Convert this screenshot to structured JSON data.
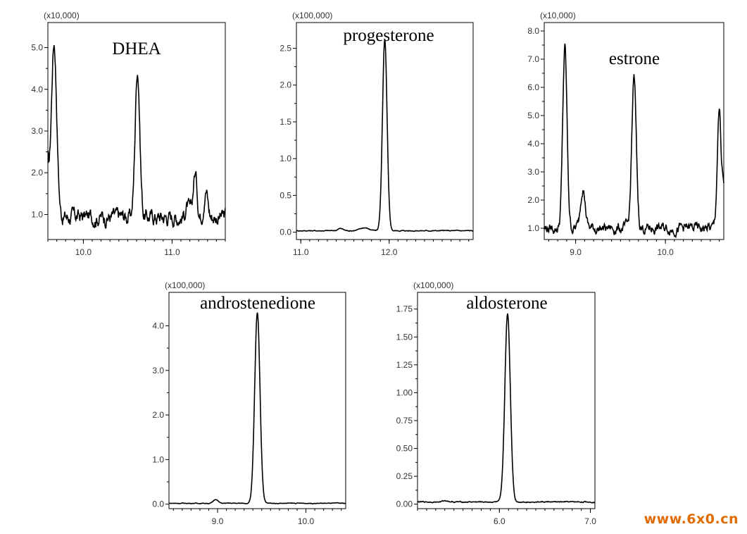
{
  "watermark": "www.6x0.cn",
  "colors": {
    "line": "#000000",
    "axis": "#000000",
    "text": "#333333",
    "watermark": "#e06b00"
  },
  "chart_data": [
    {
      "type": "line",
      "title": "DHEA",
      "scale_label": "(x10,000)",
      "xlim": [
        9.6,
        11.6
      ],
      "ylim": [
        0.4,
        5.6
      ],
      "x_ticks": [
        10.0,
        11.0
      ],
      "x_tick_labels": [
        "10.0",
        "11.0"
      ],
      "y_ticks": [
        1,
        2,
        3,
        4,
        5
      ],
      "y_tick_labels": [
        "1.0",
        "2.0",
        "3.0",
        "4.0",
        "5.0"
      ],
      "peaks": [
        {
          "rt": 9.67,
          "height": 4.15,
          "width": 0.03
        },
        {
          "rt": 10.61,
          "height": 3.55,
          "width": 0.026
        },
        {
          "rt": 11.26,
          "height": 1.05,
          "width": 0.022
        },
        {
          "rt": 11.38,
          "height": 0.7,
          "width": 0.022
        },
        {
          "rt": 11.17,
          "height": 0.25,
          "width": 0.02
        }
      ],
      "baseline": 0.95,
      "noise": 0.12,
      "left_edge": {
        "value": 2.0,
        "decay": 0.02
      }
    },
    {
      "type": "line",
      "title": "progesterone",
      "scale_label": "(x100,000)",
      "xlim": [
        10.95,
        12.95
      ],
      "ylim": [
        -0.1,
        2.85
      ],
      "x_ticks": [
        11.0,
        12.0
      ],
      "x_tick_labels": [
        "11.0",
        "12.0"
      ],
      "y_ticks": [
        0,
        0.5,
        1,
        1.5,
        2,
        2.5
      ],
      "y_tick_labels": [
        "0.0",
        "0.5",
        "1.0",
        "1.5",
        "2.0",
        "2.5"
      ],
      "peaks": [
        {
          "rt": 11.95,
          "height": 2.6,
          "width": 0.026
        },
        {
          "rt": 11.45,
          "height": 0.03,
          "width": 0.03
        },
        {
          "rt": 11.72,
          "height": 0.04,
          "width": 0.05
        }
      ],
      "baseline": 0.02,
      "noise": 0.004
    },
    {
      "type": "line",
      "title": "estrone",
      "scale_label": "(x10,000)",
      "xlim": [
        8.65,
        10.65
      ],
      "ylim": [
        0.6,
        8.3
      ],
      "x_ticks": [
        9.0,
        10.0
      ],
      "x_tick_labels": [
        "9.0",
        "10.0"
      ],
      "y_ticks": [
        1,
        2,
        3,
        4,
        5,
        6,
        7,
        8
      ],
      "y_tick_labels": [
        "1.0",
        "2.0",
        "3.0",
        "4.0",
        "5.0",
        "6.0",
        "7.0",
        "8.0"
      ],
      "peaks": [
        {
          "rt": 8.88,
          "height": 6.4,
          "width": 0.024
        },
        {
          "rt": 9.08,
          "height": 1.5,
          "width": 0.026
        },
        {
          "rt": 9.65,
          "height": 5.3,
          "width": 0.025
        },
        {
          "rt": 10.6,
          "height": 4.1,
          "width": 0.022
        }
      ],
      "baseline": 1.0,
      "noise": 0.12,
      "right_edge": {
        "value": 2.6
      }
    },
    {
      "type": "line",
      "title": "androstenedione",
      "scale_label": "(x100,000)",
      "xlim": [
        8.45,
        10.45
      ],
      "ylim": [
        -0.1,
        4.75
      ],
      "x_ticks": [
        9.0,
        10.0
      ],
      "x_tick_labels": [
        "9.0",
        "10.0"
      ],
      "y_ticks": [
        0,
        1,
        2,
        3,
        4
      ],
      "y_tick_labels": [
        "0.0",
        "1.0",
        "2.0",
        "3.0",
        "4.0"
      ],
      "peaks": [
        {
          "rt": 9.45,
          "height": 4.27,
          "width": 0.03
        },
        {
          "rt": 8.98,
          "height": 0.09,
          "width": 0.025
        }
      ],
      "baseline": 0.02,
      "noise": 0.005
    },
    {
      "type": "line",
      "title": "aldosterone",
      "scale_label": "(x100,000)",
      "xlim": [
        5.1,
        7.05
      ],
      "ylim": [
        -0.04,
        1.9
      ],
      "x_ticks": [
        6.0,
        7.0
      ],
      "x_tick_labels": [
        "6.0",
        "7.0"
      ],
      "y_ticks": [
        0,
        0.25,
        0.5,
        0.75,
        1.0,
        1.25,
        1.5,
        1.75
      ],
      "y_tick_labels": [
        "0.00",
        "0.25",
        "0.50",
        "0.75",
        "1.00",
        "1.25",
        "1.50",
        "1.75"
      ],
      "peaks": [
        {
          "rt": 6.09,
          "height": 1.69,
          "width": 0.03
        },
        {
          "rt": 5.41,
          "height": 0.012,
          "width": 0.03
        }
      ],
      "baseline": 0.02,
      "noise": 0.003
    }
  ]
}
